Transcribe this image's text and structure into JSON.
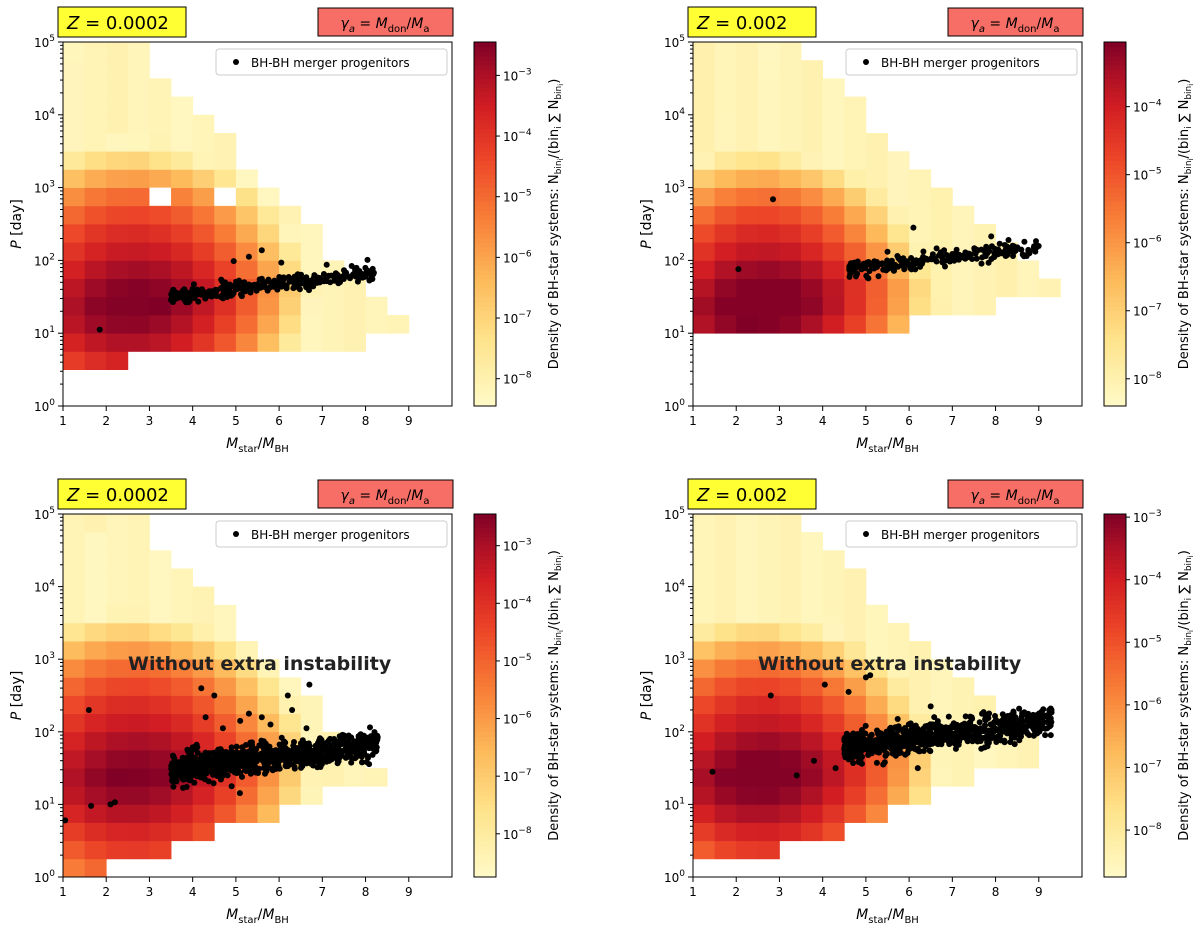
{
  "figure_title": "",
  "chart_data": [
    {
      "type": "heatmap",
      "panel": "top-left",
      "metallicity_label": "Z = 0.0002",
      "z_value": "0.0002",
      "gamma_label": "γa = Mdon/Ma",
      "xlabel": "Mstar/MBH",
      "ylabel": "P [day]",
      "xlim": [
        1,
        10
      ],
      "ylim_log10": [
        0,
        5
      ],
      "x_ticks": [
        "1",
        "2",
        "3",
        "4",
        "5",
        "6",
        "7",
        "8",
        "9"
      ],
      "y_ticks": [
        "10^0",
        "10^1",
        "10^2",
        "10^3",
        "10^4",
        "10^5"
      ],
      "colorbar_label": "Density of BH-star systems: N_bin_i/(bin_i ∑ N_bin_i)",
      "colorbar_ticks": [
        "10^-8",
        "10^-7",
        "10^-6",
        "10^-5",
        "10^-4",
        "10^-3"
      ],
      "colorbar_range_log10": [
        -8.45,
        -2.45
      ],
      "legend": "BH-BH merger progenitors",
      "legend_position": "top-right",
      "annotation": "",
      "scatter": {
        "x_range": [
          3.5,
          8.2
        ],
        "logP_start": 1.5,
        "logP_end": 1.83,
        "spread": 0.05,
        "count": 300,
        "outliers": [
          [
            1.85,
            1.05
          ],
          [
            4.95,
            1.99
          ],
          [
            5.3,
            2.05
          ],
          [
            5.6,
            2.14
          ],
          [
            6.05,
            1.97
          ],
          [
            7.1,
            1.94
          ],
          [
            3.6,
            1.56
          ],
          [
            4.1,
            1.6
          ]
        ]
      },
      "blank_cells": [
        [
          5,
          3
        ],
        [
          7,
          3
        ],
        [
          8,
          4
        ]
      ]
    },
    {
      "type": "heatmap",
      "panel": "top-right",
      "metallicity_label": "Z = 0.002",
      "z_value": "0.002",
      "gamma_label": "γa = Mdon/Ma",
      "xlabel": "Mstar/MBH",
      "ylabel": "P [day]",
      "xlim": [
        1,
        10
      ],
      "ylim_log10": [
        0,
        5
      ],
      "x_ticks": [
        "1",
        "2",
        "3",
        "4",
        "5",
        "6",
        "7",
        "8",
        "9"
      ],
      "y_ticks": [
        "10^0",
        "10^1",
        "10^2",
        "10^3",
        "10^4",
        "10^5"
      ],
      "colorbar_label": "Density of BH-star systems: N_bin_i/(bin_i ∑ N_bin_i)",
      "colorbar_ticks": [
        "10^-8",
        "10^-7",
        "10^-6",
        "10^-5",
        "10^-4"
      ],
      "colorbar_range_log10": [
        -8.4,
        -3.05
      ],
      "legend": "BH-BH merger progenitors",
      "legend_position": "top-right",
      "annotation": "",
      "scatter": {
        "x_range": [
          4.6,
          9.0
        ],
        "logP_start": 1.88,
        "logP_end": 2.18,
        "spread": 0.05,
        "count": 230,
        "outliers": [
          [
            2.05,
            1.88
          ],
          [
            2.85,
            2.84
          ],
          [
            6.1,
            2.45
          ],
          [
            7.9,
            2.33
          ],
          [
            8.3,
            2.28
          ],
          [
            5.5,
            2.12
          ]
        ]
      },
      "blank_cells": []
    },
    {
      "type": "heatmap",
      "panel": "bottom-left",
      "metallicity_label": "Z = 0.0002",
      "z_value": "0.0002",
      "gamma_label": "γa = Mdon/Ma",
      "xlabel": "Mstar/MBH",
      "ylabel": "P [day]",
      "xlim": [
        1,
        10
      ],
      "ylim_log10": [
        0,
        5
      ],
      "x_ticks": [
        "1",
        "2",
        "3",
        "4",
        "5",
        "6",
        "7",
        "8",
        "9"
      ],
      "y_ticks": [
        "10^0",
        "10^1",
        "10^2",
        "10^3",
        "10^4",
        "10^5"
      ],
      "colorbar_label": "Density of BH-star systems: N_bin_i/(bin_i ∑ N_bin_i)",
      "colorbar_ticks": [
        "10^-8",
        "10^-7",
        "10^-6",
        "10^-5",
        "10^-4",
        "10^-3"
      ],
      "colorbar_range_log10": [
        -8.75,
        -2.45
      ],
      "legend": "BH-BH merger progenitors",
      "legend_position": "top-right",
      "annotation": "Without extra instability",
      "scatter": {
        "x_range": [
          3.5,
          8.3
        ],
        "logP_start": 1.47,
        "logP_end": 1.82,
        "spread": 0.1,
        "count": 900,
        "outliers": [
          [
            1.05,
            0.78
          ],
          [
            1.6,
            2.3
          ],
          [
            1.65,
            0.98
          ],
          [
            2.1,
            1.0
          ],
          [
            2.2,
            1.03
          ],
          [
            4.2,
            2.6
          ],
          [
            4.5,
            2.5
          ],
          [
            4.3,
            2.2
          ],
          [
            4.7,
            2.05
          ],
          [
            5.1,
            2.15
          ],
          [
            5.3,
            2.25
          ],
          [
            5.6,
            2.2
          ],
          [
            5.8,
            2.1
          ],
          [
            6.2,
            2.5
          ],
          [
            6.3,
            2.3
          ],
          [
            6.7,
            2.65
          ],
          [
            4.9,
            1.25
          ]
        ]
      },
      "blank_cells": [
        [
          8,
          4
        ]
      ]
    },
    {
      "type": "heatmap",
      "panel": "bottom-right",
      "metallicity_label": "Z = 0.002",
      "z_value": "0.002",
      "gamma_label": "γa = Mdon/Ma",
      "xlabel": "Mstar/MBH",
      "ylabel": "P [day]",
      "xlim": [
        1,
        10
      ],
      "ylim_log10": [
        0,
        5
      ],
      "x_ticks": [
        "1",
        "2",
        "3",
        "4",
        "5",
        "6",
        "7",
        "8",
        "9"
      ],
      "y_ticks": [
        "10^0",
        "10^1",
        "10^2",
        "10^3",
        "10^4",
        "10^5"
      ],
      "colorbar_label": "Density of BH-star systems: N_bin_i/(bin_i ∑ N_bin_i)",
      "colorbar_ticks": [
        "10^-8",
        "10^-7",
        "10^-6",
        "10^-5",
        "10^-4",
        "10^-3"
      ],
      "colorbar_range_log10": [
        -8.75,
        -2.95
      ],
      "legend": "BH-BH merger progenitors",
      "legend_position": "top-right",
      "annotation": "Without extra instability",
      "scatter": {
        "x_range": [
          4.5,
          9.3
        ],
        "logP_start": 1.78,
        "logP_end": 2.15,
        "spread": 0.1,
        "count": 800,
        "outliers": [
          [
            1.45,
            1.45
          ],
          [
            2.8,
            2.5
          ],
          [
            3.8,
            1.6
          ],
          [
            4.05,
            2.65
          ],
          [
            4.3,
            1.5
          ],
          [
            4.6,
            2.55
          ],
          [
            5.0,
            2.75
          ],
          [
            5.1,
            2.78
          ],
          [
            5.4,
            1.55
          ],
          [
            6.5,
            2.35
          ],
          [
            3.4,
            1.4
          ],
          [
            6.2,
            1.5
          ]
        ]
      },
      "blank_cells": []
    }
  ]
}
